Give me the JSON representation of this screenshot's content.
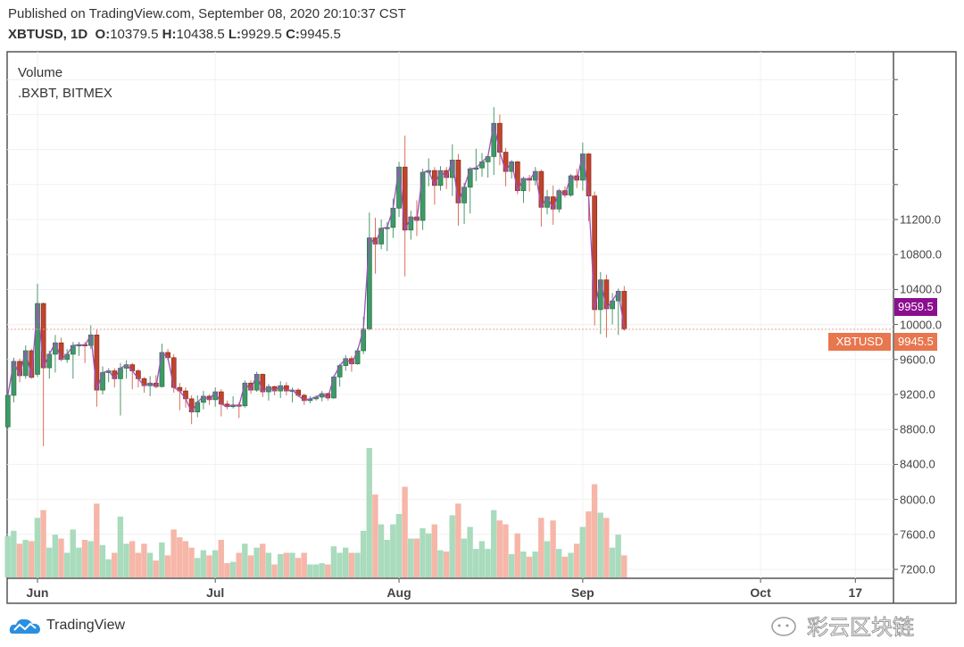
{
  "header": {
    "published": "Published on TradingView.com, September 08, 2020 20:10:37 CST",
    "symbol": "XBTUSD, 1D",
    "o_label": "O:",
    "o_value": "10379.5",
    "h_label": "H:",
    "h_value": "10438.5",
    "l_label": "L:",
    "l_value": "9929.5",
    "c_label": "C:",
    "c_value": "9945.5"
  },
  "legend": {
    "volume": "Volume",
    "index": ".BXBT, BITMEX"
  },
  "price_tags": {
    "index_value": "9959.5",
    "index_color": "#8b0f8f",
    "symbol_label": "XBTUSD",
    "symbol_value": "9945.5",
    "symbol_color": "#e8764e"
  },
  "footer": {
    "brand": "TradingView",
    "watermark": "彩云区块链"
  },
  "colors": {
    "up": "#3e9a66",
    "down": "#c0442c",
    "up_volume": "#a9dbbd",
    "down_volume": "#f6b6a8",
    "index_line": "#a050c0",
    "last_price_line": "#f0a090"
  },
  "chart_data": {
    "type": "candlestick",
    "title": "",
    "y_ticks": [
      "7200.0",
      "7600.0",
      "8000.0",
      "8400.0",
      "8800.0",
      "9200.0",
      "9600.0",
      "10000.0",
      "10400.0",
      "10800.0",
      "11200.0"
    ],
    "y_tick_values": [
      7200,
      7600,
      8000,
      8400,
      8800,
      9200,
      9600,
      10000,
      10400,
      10800,
      11200
    ],
    "ylim": [
      7200,
      13200
    ],
    "x_ticks": [
      {
        "label": "Jun",
        "date": "2020-06-01"
      },
      {
        "label": "Jul",
        "date": "2020-07-01"
      },
      {
        "label": "Aug",
        "date": "2020-08-01"
      },
      {
        "label": "Sep",
        "date": "2020-09-01"
      },
      {
        "label": "Oct",
        "date": "2020-10-01"
      },
      {
        "label": "17",
        "date": "2020-10-17"
      }
    ],
    "xlim": [
      "2020-05-27",
      "2020-10-22"
    ],
    "grid": true,
    "last_price": 9945.5,
    "index_last": 9959.5,
    "columns": [
      "date",
      "open",
      "high",
      "low",
      "close"
    ],
    "ohlc": [
      [
        "2020-05-27",
        8830,
        9230,
        8800,
        9190
      ],
      [
        "2020-05-28",
        9190,
        9620,
        9110,
        9578
      ],
      [
        "2020-05-29",
        9578,
        9610,
        9340,
        9415
      ],
      [
        "2020-05-30",
        9415,
        9760,
        9380,
        9700
      ],
      [
        "2020-05-31",
        9700,
        9720,
        9380,
        9395
      ],
      [
        "2020-06-01",
        9430,
        10465,
        9400,
        10240
      ],
      [
        "2020-06-02",
        10240,
        10250,
        8610,
        9505
      ],
      [
        "2020-06-03",
        9505,
        9700,
        9380,
        9660
      ],
      [
        "2020-06-04",
        9660,
        9880,
        9450,
        9790
      ],
      [
        "2020-06-05",
        9790,
        9850,
        9580,
        9600
      ],
      [
        "2020-06-06",
        9600,
        9720,
        9560,
        9660
      ],
      [
        "2020-06-07",
        9660,
        9800,
        9380,
        9760
      ],
      [
        "2020-06-08",
        9760,
        9800,
        9640,
        9770
      ],
      [
        "2020-06-09",
        9770,
        9800,
        9560,
        9760
      ],
      [
        "2020-06-10",
        9760,
        9990,
        9720,
        9880
      ],
      [
        "2020-06-11",
        9880,
        9950,
        9060,
        9250
      ],
      [
        "2020-06-12",
        9250,
        9520,
        9200,
        9450
      ],
      [
        "2020-06-13",
        9450,
        9500,
        9340,
        9470
      ],
      [
        "2020-06-14",
        9470,
        9500,
        9280,
        9380
      ],
      [
        "2020-06-15",
        9380,
        9560,
        8960,
        9500
      ],
      [
        "2020-06-16",
        9500,
        9590,
        9380,
        9540
      ],
      [
        "2020-06-17",
        9540,
        9560,
        9260,
        9470
      ],
      [
        "2020-06-18",
        9470,
        9490,
        9280,
        9380
      ],
      [
        "2020-06-19",
        9380,
        9400,
        9220,
        9300
      ],
      [
        "2020-06-20",
        9300,
        9410,
        9180,
        9330
      ],
      [
        "2020-06-21",
        9330,
        9420,
        9270,
        9290
      ],
      [
        "2020-06-22",
        9290,
        9780,
        9280,
        9680
      ],
      [
        "2020-06-23",
        9680,
        9720,
        9590,
        9620
      ],
      [
        "2020-06-24",
        9620,
        9660,
        9220,
        9280
      ],
      [
        "2020-06-25",
        9280,
        9330,
        9020,
        9240
      ],
      [
        "2020-06-26",
        9240,
        9280,
        9050,
        9150
      ],
      [
        "2020-06-27",
        9150,
        9190,
        8860,
        9000
      ],
      [
        "2020-06-28",
        9000,
        9190,
        8940,
        9110
      ],
      [
        "2020-06-29",
        9110,
        9240,
        9030,
        9180
      ],
      [
        "2020-06-30",
        9180,
        9200,
        9080,
        9140
      ],
      [
        "2020-07-01",
        9140,
        9280,
        9060,
        9230
      ],
      [
        "2020-07-02",
        9230,
        9260,
        8950,
        9090
      ],
      [
        "2020-07-03",
        9090,
        9130,
        9030,
        9060
      ],
      [
        "2020-07-04",
        9060,
        9180,
        9040,
        9080
      ],
      [
        "2020-07-05",
        9080,
        9110,
        8930,
        9070
      ],
      [
        "2020-07-06",
        9070,
        9360,
        9050,
        9330
      ],
      [
        "2020-07-07",
        9330,
        9360,
        9210,
        9250
      ],
      [
        "2020-07-08",
        9250,
        9460,
        9230,
        9430
      ],
      [
        "2020-07-09",
        9430,
        9440,
        9170,
        9230
      ],
      [
        "2020-07-10",
        9230,
        9320,
        9130,
        9290
      ],
      [
        "2020-07-11",
        9290,
        9300,
        9190,
        9240
      ],
      [
        "2020-07-12",
        9240,
        9350,
        9160,
        9300
      ],
      [
        "2020-07-13",
        9300,
        9340,
        9190,
        9240
      ],
      [
        "2020-07-14",
        9240,
        9280,
        9110,
        9250
      ],
      [
        "2020-07-15",
        9250,
        9270,
        9170,
        9190
      ],
      [
        "2020-07-16",
        9190,
        9210,
        9080,
        9130
      ],
      [
        "2020-07-17",
        9130,
        9180,
        9100,
        9150
      ],
      [
        "2020-07-18",
        9150,
        9190,
        9130,
        9170
      ],
      [
        "2020-07-19",
        9170,
        9240,
        9120,
        9210
      ],
      [
        "2020-07-20",
        9210,
        9220,
        9130,
        9160
      ],
      [
        "2020-07-21",
        9160,
        9420,
        9150,
        9400
      ],
      [
        "2020-07-22",
        9400,
        9550,
        9290,
        9530
      ],
      [
        "2020-07-23",
        9530,
        9650,
        9470,
        9610
      ],
      [
        "2020-07-24",
        9610,
        9640,
        9460,
        9550
      ],
      [
        "2020-07-25",
        9550,
        9730,
        9540,
        9700
      ],
      [
        "2020-07-26",
        9700,
        10090,
        9660,
        9950
      ],
      [
        "2020-07-27",
        9950,
        11280,
        9930,
        10990
      ],
      [
        "2020-07-28",
        10990,
        11220,
        10580,
        10920
      ],
      [
        "2020-07-29",
        10920,
        11200,
        10860,
        11100
      ],
      [
        "2020-07-30",
        11100,
        11170,
        10840,
        11110
      ],
      [
        "2020-07-31",
        11110,
        11440,
        10990,
        11330
      ],
      [
        "2020-08-01",
        11330,
        11860,
        11230,
        11800
      ],
      [
        "2020-08-02",
        11800,
        12160,
        10550,
        11080
      ],
      [
        "2020-08-03",
        11080,
        11300,
        10970,
        11230
      ],
      [
        "2020-08-04",
        11230,
        11420,
        11010,
        11190
      ],
      [
        "2020-08-05",
        11190,
        11780,
        11080,
        11740
      ],
      [
        "2020-08-06",
        11740,
        11900,
        11580,
        11760
      ],
      [
        "2020-08-07",
        11760,
        11800,
        11370,
        11590
      ],
      [
        "2020-08-08",
        11590,
        11810,
        11530,
        11760
      ],
      [
        "2020-08-09",
        11760,
        11800,
        11550,
        11680
      ],
      [
        "2020-08-10",
        11680,
        12060,
        11470,
        11880
      ],
      [
        "2020-08-11",
        11880,
        11950,
        11130,
        11390
      ],
      [
        "2020-08-12",
        11390,
        11620,
        11150,
        11570
      ],
      [
        "2020-08-13",
        11570,
        11800,
        11270,
        11780
      ],
      [
        "2020-08-14",
        11780,
        12010,
        11640,
        11790
      ],
      [
        "2020-08-15",
        11790,
        11960,
        11690,
        11860
      ],
      [
        "2020-08-16",
        11860,
        11940,
        11680,
        11920
      ],
      [
        "2020-08-17",
        11920,
        12485,
        11710,
        12300
      ],
      [
        "2020-08-18",
        12300,
        12400,
        11820,
        11970
      ],
      [
        "2020-08-19",
        11970,
        12020,
        11580,
        11750
      ],
      [
        "2020-08-20",
        11750,
        11880,
        11670,
        11860
      ],
      [
        "2020-08-21",
        11860,
        11870,
        11490,
        11530
      ],
      [
        "2020-08-22",
        11530,
        11690,
        11390,
        11670
      ],
      [
        "2020-08-23",
        11670,
        11710,
        11520,
        11650
      ],
      [
        "2020-08-24",
        11650,
        11800,
        11590,
        11750
      ],
      [
        "2020-08-25",
        11750,
        11770,
        11120,
        11340
      ],
      [
        "2020-08-26",
        11340,
        11540,
        11260,
        11460
      ],
      [
        "2020-08-27",
        11460,
        11590,
        11140,
        11320
      ],
      [
        "2020-08-28",
        11320,
        11550,
        11280,
        11530
      ],
      [
        "2020-08-29",
        11530,
        11580,
        11450,
        11480
      ],
      [
        "2020-08-30",
        11480,
        11720,
        11460,
        11700
      ],
      [
        "2020-08-31",
        11700,
        11780,
        11560,
        11650
      ],
      [
        "2020-09-01",
        11650,
        12080,
        11530,
        11950
      ],
      [
        "2020-09-02",
        11950,
        11960,
        11180,
        11470
      ],
      [
        "2020-09-03",
        11470,
        11520,
        9990,
        10170
      ],
      [
        "2020-09-04",
        10170,
        10600,
        9890,
        10510
      ],
      [
        "2020-09-05",
        10510,
        10570,
        9850,
        10180
      ],
      [
        "2020-09-06",
        10180,
        10360,
        10000,
        10270
      ],
      [
        "2020-09-07",
        10270,
        10410,
        9880,
        10380
      ],
      [
        "2020-09-08",
        10379.5,
        10438.5,
        9929.5,
        9945.5
      ]
    ],
    "volume_relative_pct": [
      32,
      36,
      26,
      29,
      28,
      46,
      52,
      23,
      33,
      30,
      19,
      37,
      23,
      29,
      28,
      57,
      25,
      14,
      19,
      47,
      26,
      28,
      19,
      26,
      19,
      13,
      27,
      17,
      37,
      31,
      28,
      23,
      15,
      21,
      17,
      21,
      29,
      11,
      12,
      19,
      26,
      17,
      23,
      26,
      19,
      10,
      18,
      19,
      19,
      15,
      19,
      10,
      10,
      11,
      10,
      24,
      19,
      23,
      19,
      19,
      36,
      100,
      64,
      41,
      29,
      41,
      49,
      70,
      30,
      30,
      38,
      34,
      41,
      21,
      20,
      48,
      57,
      30,
      39,
      22,
      28,
      22,
      52,
      44,
      41,
      18,
      34,
      20,
      16,
      20,
      46,
      28,
      44,
      22,
      16,
      19,
      26,
      39,
      51,
      72,
      50,
      46,
      23,
      33,
      17
    ]
  }
}
